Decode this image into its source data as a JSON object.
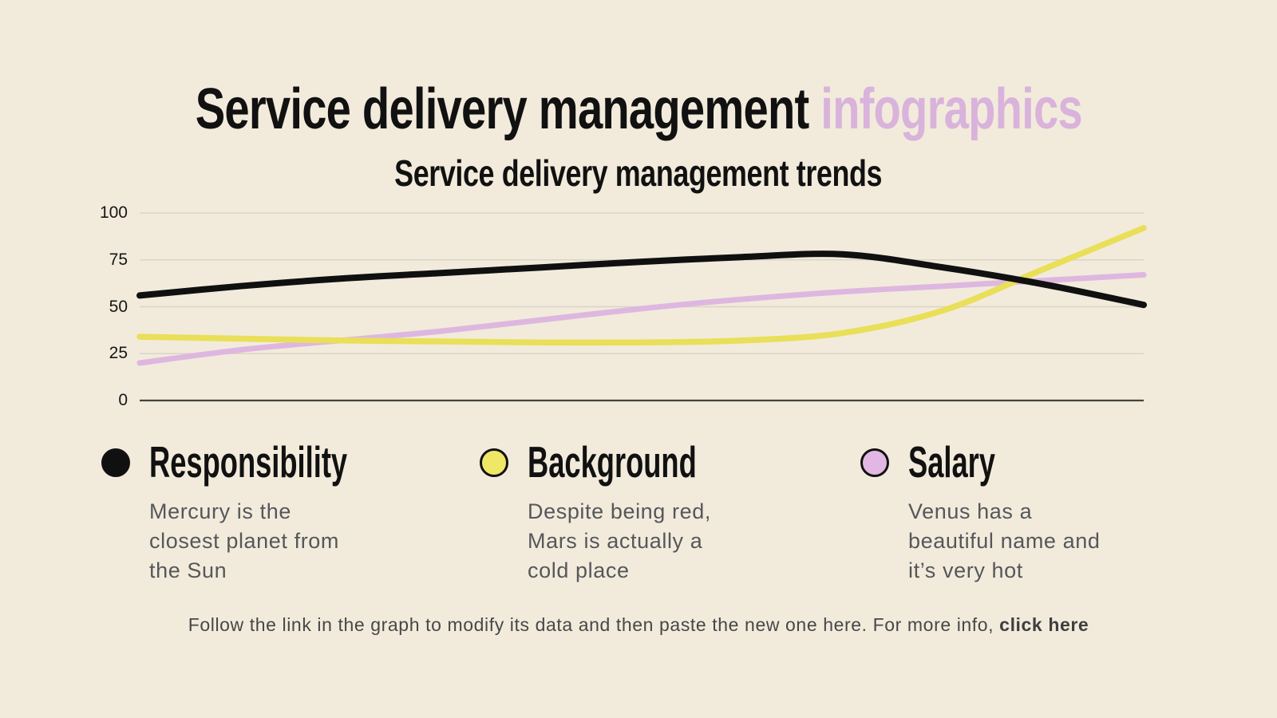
{
  "header": {
    "title_main": "Service delivery management ",
    "title_accent": "infographics",
    "subtitle": "Service delivery management trends"
  },
  "colors": {
    "background": "#f2ebdc",
    "accent_pink": "#d9b3db",
    "gridline": "#dad4c6",
    "axis_line": "#45433d",
    "description_text": "#56575a"
  },
  "chart_data": {
    "type": "line",
    "x": [
      0,
      1,
      2,
      3,
      4,
      5,
      6,
      7,
      8,
      9,
      10
    ],
    "y_ticks": [
      100,
      75,
      50,
      25,
      0
    ],
    "ylim": [
      0,
      100
    ],
    "grid": true,
    "legend_position": "bottom",
    "series": [
      {
        "name": "Responsibility",
        "color": "#101010",
        "values": [
          56,
          61,
          65,
          68,
          71,
          74,
          76.5,
          78,
          71,
          62,
          51
        ]
      },
      {
        "name": "Background",
        "color": "#e9df58",
        "values": [
          34,
          33,
          32,
          31.5,
          31,
          31,
          32,
          36,
          48,
          70,
          92
        ]
      },
      {
        "name": "Salary",
        "color": "#deb7e0",
        "values": [
          20,
          27,
          32,
          37,
          43,
          49,
          54,
          58,
          61,
          64,
          67
        ]
      }
    ]
  },
  "legend": [
    {
      "label": "Responsibility",
      "color": "#101010",
      "lines": [
        "Mercury is the",
        "closest planet from",
        "the Sun"
      ]
    },
    {
      "label": "Background",
      "color": "#f0e766",
      "lines": [
        "Despite being red,",
        "Mars is actually a",
        "cold place"
      ]
    },
    {
      "label": "Salary",
      "color": "#e2b7e3",
      "lines": [
        "Venus has a",
        "beautiful name and",
        "it’s very hot"
      ]
    }
  ],
  "footer": {
    "text": "Follow the link in the graph to modify its data and then paste the new one here. For more info, ",
    "link": "click here"
  }
}
